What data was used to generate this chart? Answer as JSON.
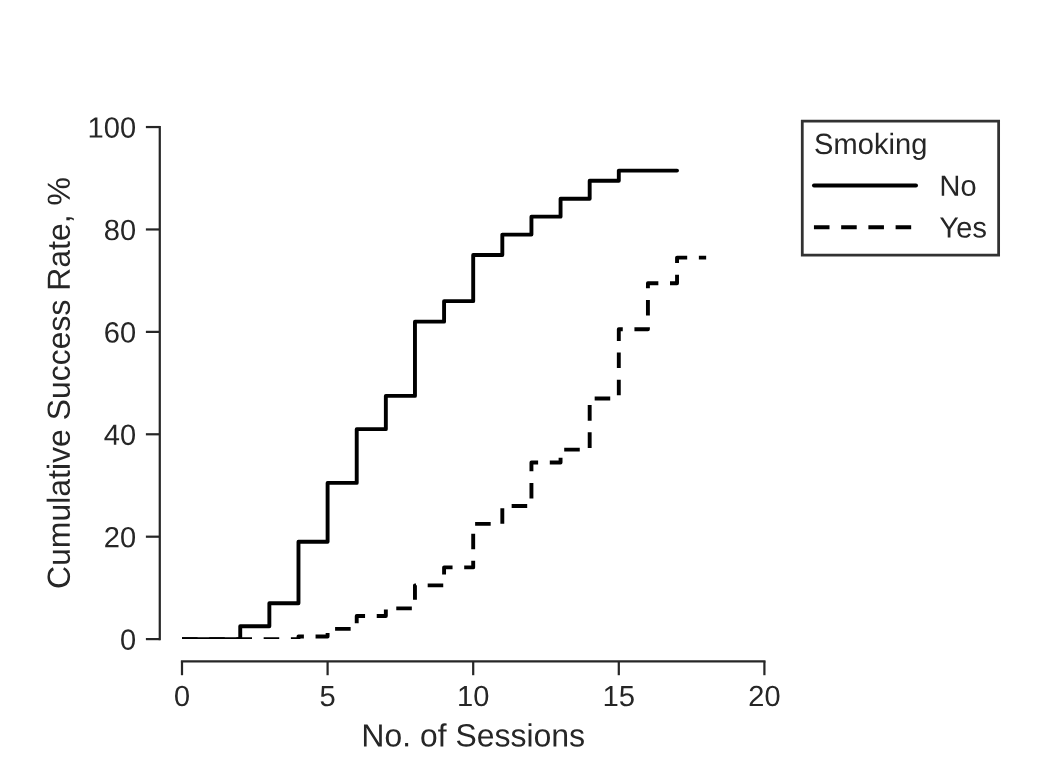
{
  "chart_data": {
    "type": "step",
    "xlabel": "No. of Sessions",
    "ylabel": "Cumulative Success Rate, %",
    "legend_title": "Smoking",
    "legend": "top right",
    "grid": false,
    "xlim": [
      0,
      20
    ],
    "xticks": [
      0,
      5,
      10,
      15,
      20
    ],
    "ylim": [
      0,
      100
    ],
    "yticks": [
      0,
      20,
      40,
      60,
      80,
      100
    ],
    "series": [
      {
        "name": "No",
        "color": "#000000",
        "line_style": "solid",
        "x": [
          0,
          2,
          3,
          4,
          5,
          6,
          7,
          8,
          9,
          10,
          11,
          12,
          13,
          14,
          15,
          17
        ],
        "values": [
          0,
          2.5,
          7,
          19,
          30.5,
          41,
          47.5,
          62,
          66,
          75,
          79,
          82.5,
          86,
          89.5,
          91.5,
          91.5
        ]
      },
      {
        "name": "Yes",
        "color": "#000000",
        "line_style": "dashed",
        "x": [
          0,
          4,
          5,
          6,
          7,
          8,
          9,
          10,
          11,
          12,
          13,
          14,
          15,
          16,
          17,
          18
        ],
        "values": [
          0,
          0.5,
          2,
          4.5,
          6,
          10.5,
          14,
          22.5,
          26,
          34.5,
          37,
          47,
          60.5,
          69.5,
          74.5,
          74.5
        ]
      }
    ]
  }
}
